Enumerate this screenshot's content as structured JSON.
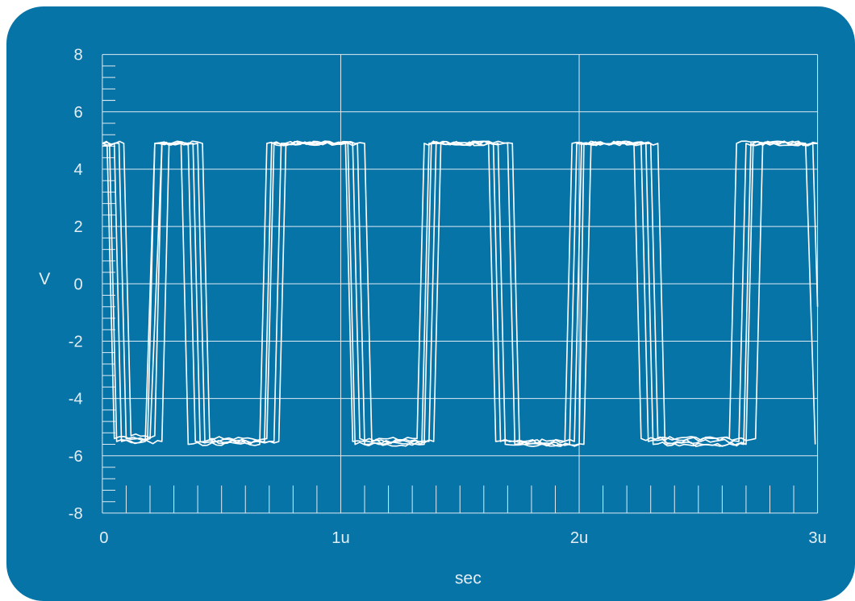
{
  "colors": {
    "background": "#0774a8",
    "grid": "#dfeaf2",
    "trace": "#ffffff",
    "text": "#e4edf4"
  },
  "chart_data": {
    "type": "line",
    "title": "",
    "xlabel": "sec",
    "ylabel": "V",
    "xlim": [
      0,
      3
    ],
    "ylim": [
      -8,
      8
    ],
    "grid": true,
    "x_unit": "u",
    "x_ticks": [
      0,
      1,
      2,
      3
    ],
    "x_tick_labels": [
      "0",
      "1u",
      "2u",
      "3u"
    ],
    "y_ticks": [
      -8,
      -6,
      -4,
      -2,
      0,
      2,
      4,
      6,
      8
    ],
    "y_tick_labels": [
      "-8",
      "-6",
      "-4",
      "-2",
      "0",
      "2",
      "4",
      "6",
      "8"
    ],
    "high_level": 4.9,
    "low_level": -5.5,
    "series": [
      {
        "points": [
          [
            0.0,
            4.9
          ],
          [
            0.07,
            4.9
          ],
          [
            0.1,
            -5.4
          ],
          [
            0.2,
            -5.4
          ],
          [
            0.25,
            4.9
          ],
          [
            0.42,
            4.9
          ],
          [
            0.45,
            -5.4
          ],
          [
            0.69,
            -5.4
          ],
          [
            0.72,
            4.9
          ],
          [
            1.03,
            4.9
          ],
          [
            1.06,
            -5.6
          ],
          [
            1.35,
            -5.6
          ],
          [
            1.38,
            4.9
          ],
          [
            1.66,
            4.9
          ],
          [
            1.69,
            -5.6
          ],
          [
            2.0,
            -5.6
          ],
          [
            2.02,
            4.9
          ],
          [
            2.26,
            4.9
          ],
          [
            2.29,
            -5.5
          ],
          [
            2.67,
            -5.5
          ],
          [
            2.7,
            4.9
          ],
          [
            3.0,
            4.9
          ]
        ]
      },
      {
        "points": [
          [
            0.0,
            4.9
          ],
          [
            0.05,
            4.9
          ],
          [
            0.08,
            -5.5
          ],
          [
            0.18,
            -5.5
          ],
          [
            0.22,
            4.9
          ],
          [
            0.38,
            4.9
          ],
          [
            0.41,
            -5.5
          ],
          [
            0.72,
            -5.5
          ],
          [
            0.75,
            4.9
          ],
          [
            1.05,
            4.9
          ],
          [
            1.08,
            -5.4
          ],
          [
            1.32,
            -5.4
          ],
          [
            1.35,
            4.9
          ],
          [
            1.62,
            4.9
          ],
          [
            1.65,
            -5.5
          ],
          [
            1.98,
            -5.5
          ],
          [
            2.01,
            4.9
          ],
          [
            2.3,
            4.9
          ],
          [
            2.33,
            -5.4
          ],
          [
            2.63,
            -5.4
          ],
          [
            2.66,
            4.9
          ],
          [
            2.98,
            4.9
          ],
          [
            3.0,
            -0.8
          ]
        ]
      },
      {
        "points": [
          [
            0.0,
            4.9
          ],
          [
            0.03,
            4.9
          ],
          [
            0.06,
            -5.5
          ],
          [
            0.25,
            -5.5
          ],
          [
            0.28,
            4.9
          ],
          [
            0.33,
            4.9
          ],
          [
            0.36,
            -5.6
          ],
          [
            0.66,
            -5.6
          ],
          [
            0.69,
            4.9
          ],
          [
            1.1,
            4.9
          ],
          [
            1.13,
            -5.5
          ],
          [
            1.37,
            -5.5
          ],
          [
            1.4,
            4.9
          ],
          [
            1.7,
            4.9
          ],
          [
            1.73,
            -5.6
          ],
          [
            1.96,
            -5.6
          ],
          [
            1.99,
            4.9
          ],
          [
            2.33,
            4.9
          ],
          [
            2.36,
            -5.6
          ],
          [
            2.7,
            -5.6
          ],
          [
            2.73,
            4.9
          ],
          [
            2.95,
            4.9
          ],
          [
            2.99,
            -5.6
          ]
        ]
      },
      {
        "points": [
          [
            0.0,
            4.9
          ],
          [
            0.09,
            4.9
          ],
          [
            0.12,
            -5.3
          ],
          [
            0.22,
            -5.3
          ],
          [
            0.25,
            4.9
          ],
          [
            0.4,
            4.9
          ],
          [
            0.43,
            -5.5
          ],
          [
            0.74,
            -5.5
          ],
          [
            0.77,
            4.9
          ],
          [
            1.02,
            4.9
          ],
          [
            1.05,
            -5.5
          ],
          [
            1.39,
            -5.5
          ],
          [
            1.42,
            4.9
          ],
          [
            1.64,
            4.9
          ],
          [
            1.67,
            -5.5
          ],
          [
            1.94,
            -5.5
          ],
          [
            1.97,
            4.9
          ],
          [
            2.23,
            4.9
          ],
          [
            2.26,
            -5.4
          ],
          [
            2.74,
            -5.4
          ],
          [
            2.77,
            4.9
          ],
          [
            3.0,
            4.9
          ]
        ]
      },
      {
        "points": [
          [
            0.0,
            4.8
          ],
          [
            0.02,
            4.8
          ],
          [
            0.05,
            -5.4
          ],
          [
            0.19,
            -5.4
          ],
          [
            0.22,
            4.9
          ],
          [
            0.36,
            4.9
          ],
          [
            0.39,
            -5.5
          ],
          [
            0.68,
            -5.5
          ],
          [
            0.71,
            4.9
          ],
          [
            1.07,
            4.9
          ],
          [
            1.1,
            -5.6
          ],
          [
            1.34,
            -5.6
          ],
          [
            1.37,
            4.9
          ],
          [
            1.72,
            4.9
          ],
          [
            1.75,
            -5.6
          ],
          [
            2.02,
            -5.6
          ],
          [
            2.05,
            4.9
          ],
          [
            2.28,
            4.9
          ],
          [
            2.31,
            -5.6
          ],
          [
            2.69,
            -5.6
          ],
          [
            2.72,
            4.9
          ],
          [
            3.0,
            4.9
          ]
        ]
      }
    ]
  }
}
